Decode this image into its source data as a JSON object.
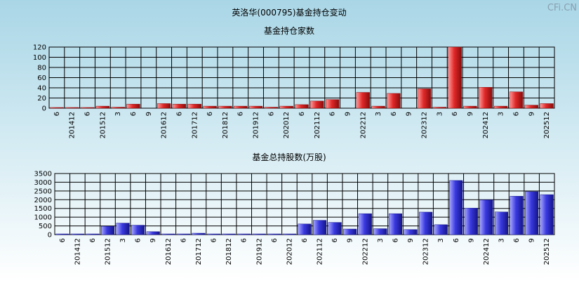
{
  "page_title": "英洛华(000795)基金持仓变动",
  "watermark": "CFi.CN",
  "colors": {
    "red_bar": "#e02828",
    "blue_bar": "#3a3ae0",
    "grid": "#000000"
  },
  "chart_data": [
    {
      "type": "bar",
      "title": "基金持仓家数",
      "ylim": [
        0,
        120
      ],
      "yticks": [
        0,
        20,
        40,
        60,
        80,
        100,
        120
      ],
      "x_labels": [
        "6",
        "201412",
        "6",
        "201512",
        "3",
        "6",
        "9",
        "201612",
        "6",
        "201712",
        "6",
        "201812",
        "6",
        "201912",
        "6",
        "202012",
        "6",
        "202112",
        "6",
        "9",
        "202212",
        "3",
        "6",
        "9",
        "202312",
        "3",
        "6",
        "9",
        "202412",
        "3",
        "6",
        "9",
        "202512"
      ],
      "values": [
        1,
        1,
        1,
        4,
        2,
        8,
        0,
        9,
        8,
        8,
        4,
        4,
        4,
        4,
        2,
        4,
        7,
        14,
        17,
        0,
        31,
        4,
        29,
        0,
        38,
        2,
        120,
        4,
        41,
        4,
        32,
        6,
        9
      ]
    },
    {
      "type": "bar",
      "title": "基金总持股数(万股)",
      "ylim": [
        0,
        3500
      ],
      "yticks": [
        0,
        500,
        1000,
        1500,
        2000,
        2500,
        3000,
        3500
      ],
      "x_labels": [
        "6",
        "201412",
        "6",
        "201512",
        "3",
        "6",
        "9",
        "201612",
        "6",
        "201712",
        "6",
        "201812",
        "6",
        "201912",
        "6",
        "202012",
        "6",
        "202112",
        "6",
        "9",
        "202212",
        "3",
        "6",
        "9",
        "202312",
        "3",
        "6",
        "9",
        "202412",
        "3",
        "6",
        "9",
        "202512"
      ],
      "values": [
        30,
        30,
        30,
        480,
        660,
        540,
        170,
        20,
        10,
        80,
        20,
        20,
        20,
        20,
        20,
        20,
        610,
        820,
        700,
        320,
        1200,
        340,
        1200,
        290,
        1290,
        570,
        3100,
        1520,
        1990,
        1300,
        2200,
        2460,
        2290
      ]
    }
  ]
}
